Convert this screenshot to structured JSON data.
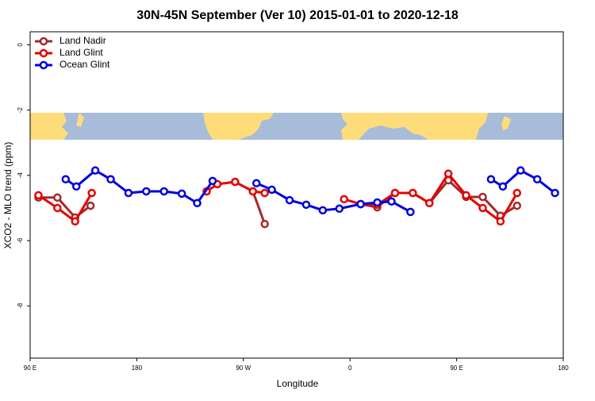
{
  "chart_data": {
    "type": "line",
    "title": "30N-45N September (Ver 10)   2015-01-01 to 2020-12-18",
    "x_label": "Longitude",
    "y_label": "XCO2 - MLO trend (ppm)",
    "xlim": [
      90,
      540
    ],
    "ylim": [
      -9.6,
      0.4
    ],
    "xticks": [
      {
        "value": 90,
        "label": "90 E"
      },
      {
        "value": 180,
        "label": "180"
      },
      {
        "value": 270,
        "label": "90 W"
      },
      {
        "value": 360,
        "label": "0"
      },
      {
        "value": 450,
        "label": "90 E"
      },
      {
        "value": 540,
        "label": "180"
      }
    ],
    "yticks": [
      0,
      -2,
      -4,
      -6,
      -8
    ],
    "legend": "top-left",
    "series": [
      {
        "name": "Land Nadir",
        "color": "#a52a2a",
        "x": [
          97,
          113,
          128,
          141,
          null,
          239,
          248,
          263,
          278,
          288,
          null,
          369,
          383,
          398,
          413,
          427,
          443,
          458,
          472,
          487,
          501
        ],
        "values": [
          -4.68,
          -4.68,
          -5.29,
          -4.93,
          null,
          -4.49,
          -4.27,
          -4.2,
          -4.49,
          -5.49,
          null,
          -4.88,
          -4.98,
          -4.54,
          -4.54,
          -4.85,
          -4.15,
          -4.66,
          -4.66,
          -5.24,
          -4.93
        ]
      },
      {
        "name": "Land Glint",
        "color": "#e60000",
        "x": [
          97,
          113,
          128,
          142,
          null,
          239,
          248,
          263,
          278,
          288,
          null,
          355,
          369,
          383,
          398,
          413,
          427,
          443,
          458,
          472,
          487,
          501
        ],
        "values": [
          -4.61,
          -5.0,
          -5.41,
          -4.54,
          null,
          -4.49,
          -4.27,
          -4.2,
          -4.49,
          -4.54,
          null,
          -4.73,
          -4.88,
          -4.9,
          -4.54,
          -4.54,
          -4.85,
          -3.95,
          -4.61,
          -5.0,
          -5.41,
          -4.54
        ]
      },
      {
        "name": "Ocean Glint",
        "color": "#0000e0",
        "x": [
          120,
          129,
          145,
          158,
          173,
          188,
          203,
          218,
          231,
          244,
          null,
          281,
          294,
          309,
          323,
          337,
          351,
          369,
          383,
          395,
          411,
          null,
          479,
          489,
          504,
          518,
          533
        ],
        "values": [
          -4.12,
          -4.34,
          -3.85,
          -4.12,
          -4.54,
          -4.49,
          -4.49,
          -4.56,
          -4.85,
          -4.17,
          null,
          -4.24,
          -4.44,
          -4.76,
          -4.9,
          -5.07,
          -5.02,
          -4.88,
          -4.83,
          -4.8,
          -5.12,
          null,
          -4.12,
          -4.34,
          -3.85,
          -4.12,
          -4.54
        ]
      }
    ]
  }
}
